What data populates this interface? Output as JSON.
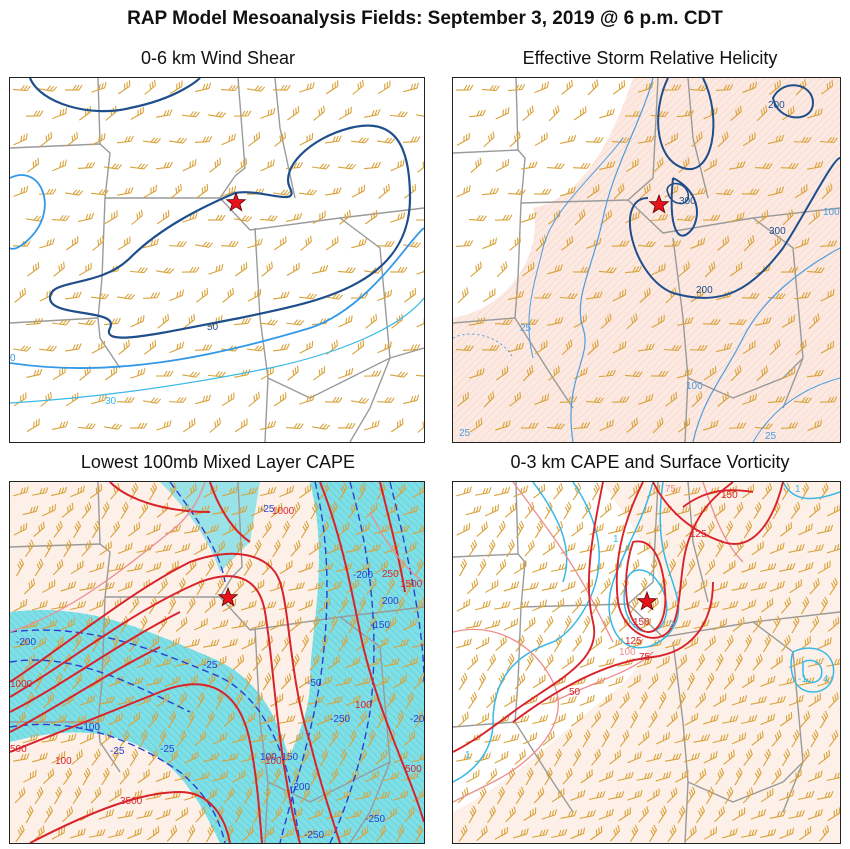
{
  "title": "RAP Model Mesoanalysis Fields:  September 3, 2019 @ 6 p.m. CDT",
  "panels": [
    {
      "title": "0-6 km Wind Shear",
      "contour_labels": [
        "50",
        "30",
        "0"
      ]
    },
    {
      "title": "Effective Storm Relative Helicity",
      "contour_labels": [
        "200",
        "300",
        "300",
        "100",
        "200",
        "25",
        "100",
        "25",
        "25"
      ]
    },
    {
      "title": "Lowest 100mb Mixed Layer CAPE",
      "contour_labels": [
        "-25",
        "1000",
        "-200",
        "-150",
        "200",
        "-25",
        "1500",
        "250",
        "-200",
        "500",
        "-50",
        "100",
        "100",
        "-150",
        "-25",
        "-100",
        "500",
        "100",
        "-200",
        "-25",
        "-250",
        "-250",
        "3500",
        "1000",
        "-200",
        "-250",
        "100"
      ]
    },
    {
      "title": "0-3 km CAPE and Surface Vorticity",
      "contour_labels": [
        "150",
        "125",
        "75",
        "150",
        "125",
        "100",
        "75",
        "50",
        "3",
        "1",
        "4",
        "1",
        "1",
        "-1"
      ]
    }
  ],
  "colors": {
    "state_lines": "#9a9a9a",
    "barbs": "#d9a23a",
    "shear_contour_dark": "#1f4e8c",
    "shear_contour_light": "#3399e6",
    "helicity_contour": "#1f4e8c",
    "helicity_light": "#4d9de0",
    "cape_red": "#d9232b",
    "cin_blue": "#2a3fd1",
    "cin_fill": "#7fdfe6",
    "vorticity": "#39b8e6",
    "star": "#e8121b"
  }
}
